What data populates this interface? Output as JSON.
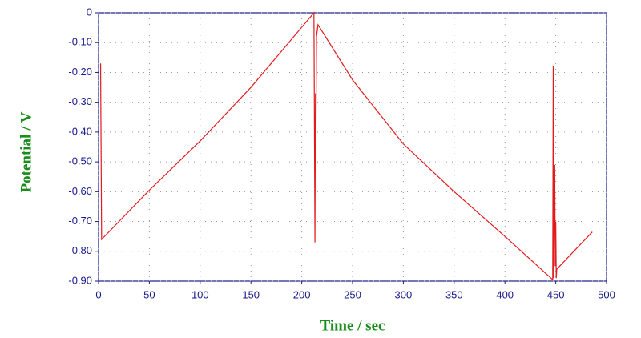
{
  "chart_data": {
    "type": "line",
    "x_label": "Time / sec",
    "y_label": "Potential / V",
    "series": [
      {
        "color": "#e31a1c",
        "x": [
          2,
          3,
          50,
          100,
          150,
          212,
          213,
          213.5,
          214,
          214.5,
          216,
          250,
          300,
          350,
          400,
          447,
          447.5,
          448,
          449,
          449.5,
          450,
          450.5,
          451,
          486
        ],
        "values": [
          -0.17,
          -0.76,
          -0.595,
          -0.43,
          -0.25,
          0,
          -0.77,
          -0.27,
          -0.4,
          -0.08,
          -0.04,
          -0.225,
          -0.44,
          -0.6,
          -0.75,
          -0.895,
          -0.18,
          -0.89,
          -0.51,
          -0.85,
          -0.7,
          -0.89,
          -0.86,
          -0.735
        ]
      }
    ],
    "xlim": [
      0,
      500
    ],
    "xticks": [
      0,
      50,
      100,
      150,
      200,
      250,
      300,
      350,
      400,
      450,
      500
    ],
    "ylim": [
      -0.9,
      0
    ],
    "yticks": [
      0,
      {
        "value": -0.1,
        "label": "-0.10"
      },
      {
        "value": -0.2,
        "label": "-0.20"
      },
      {
        "value": -0.3,
        "label": "-0.30"
      },
      {
        "value": -0.4,
        "label": "-0.40"
      },
      {
        "value": -0.5,
        "label": "-0.50"
      },
      {
        "value": -0.6,
        "label": "-0.60"
      },
      {
        "value": -0.7,
        "label": "-0.70"
      },
      {
        "value": -0.8,
        "label": "-0.80"
      },
      {
        "value": -0.9,
        "label": "-0.90"
      }
    ],
    "grid": true
  }
}
